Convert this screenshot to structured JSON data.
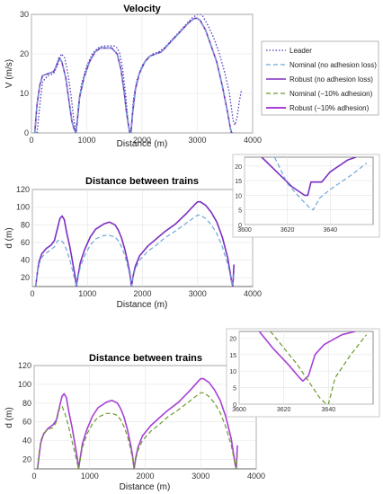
{
  "colors": {
    "leader": "#4b3fb5",
    "nominal": "#6ea6d9",
    "robust": "#7b2fbe",
    "nominal_adhesion": "#6b9a2c",
    "robust_adhesion": "#a83fd6"
  },
  "legend_labels": {
    "leader": "Leader",
    "nominal": "Nominal (no adhesion loss)",
    "robust": "Robust (no adhesion loss)",
    "nominal_adhesion": "Nominal (−10% adhesion)",
    "robust_adhesion": "Robust (−10% adhesion)"
  },
  "chart_data": [
    {
      "id": "velocity",
      "type": "line",
      "title": "Velocity",
      "xlabel": "Distance (m)",
      "ylabel": "V (m/s)",
      "xlim": [
        0,
        4000
      ],
      "ylim": [
        0,
        30
      ],
      "xticks": [
        0,
        1000,
        2000,
        3000,
        4000
      ],
      "yticks": [
        0,
        10,
        20,
        30
      ],
      "legend_position": "right",
      "series": [
        {
          "key": "leader",
          "name": "Leader",
          "style": "dotted",
          "x": [
            100,
            160,
            200,
            300,
            400,
            470,
            540,
            600,
            660,
            720,
            760,
            790,
            810,
            850,
            900,
            1000,
            1100,
            1200,
            1300,
            1400,
            1500,
            1550,
            1600,
            1650,
            1700,
            1740,
            1760,
            1780,
            1800,
            1840,
            1900,
            2000,
            2100,
            2200,
            2300,
            2400,
            2500,
            2600,
            2700,
            2800,
            2900,
            3000,
            3050,
            3100,
            3200,
            3300,
            3400,
            3500,
            3580,
            3620,
            3650,
            3680,
            3720,
            3760,
            3800
          ],
          "y": [
            0,
            8,
            13,
            14.5,
            15,
            17,
            20,
            19,
            15,
            9,
            4,
            1,
            0,
            7,
            12,
            17,
            20,
            21.5,
            22,
            22,
            22,
            21.5,
            20,
            16,
            10,
            4,
            1.5,
            0,
            0,
            8,
            13,
            17,
            19,
            20,
            20.5,
            21.5,
            23,
            24.5,
            26,
            27.5,
            29,
            30,
            30,
            29.5,
            27,
            24,
            20,
            15,
            10,
            6,
            3,
            2,
            4,
            8,
            11
          ]
        },
        {
          "key": "nominal",
          "name": "Nominal (no adhesion loss)",
          "style": "dashed",
          "x": [
            60,
            100,
            150,
            200,
            300,
            400,
            450,
            500,
            550,
            620,
            680,
            730,
            770,
            800,
            830,
            870,
            950,
            1050,
            1150,
            1250,
            1350,
            1450,
            1550,
            1620,
            1680,
            1720,
            1760,
            1780,
            1800,
            1830,
            1880,
            1950,
            2050,
            2150,
            2250,
            2350,
            2450,
            2550,
            2650,
            2750,
            2850,
            2950,
            3000,
            3050,
            3150,
            3250,
            3350,
            3450,
            3550,
            3600,
            3620,
            3640
          ],
          "y": [
            0,
            7,
            12,
            14.5,
            15,
            15.5,
            17,
            19,
            18,
            14,
            8,
            3,
            1,
            0,
            3,
            9,
            14,
            18,
            20.5,
            21.5,
            21.5,
            21.5,
            20,
            16,
            10,
            5,
            1.5,
            0,
            0,
            5,
            11,
            15,
            18,
            19.5,
            20,
            20.5,
            22,
            23.5,
            25,
            26.5,
            28,
            29,
            29,
            28.5,
            26,
            22,
            18,
            12,
            5,
            1,
            0,
            0
          ]
        },
        {
          "key": "robust",
          "name": "Robust (no adhesion loss)",
          "style": "solid",
          "x": [
            60,
            100,
            150,
            200,
            300,
            400,
            450,
            500,
            550,
            620,
            680,
            730,
            770,
            800,
            830,
            870,
            950,
            1050,
            1150,
            1250,
            1350,
            1450,
            1550,
            1620,
            1680,
            1720,
            1760,
            1780,
            1800,
            1830,
            1880,
            1950,
            2050,
            2150,
            2250,
            2350,
            2450,
            2550,
            2650,
            2750,
            2850,
            2950,
            3000,
            3050,
            3150,
            3250,
            3350,
            3450,
            3550,
            3600,
            3620,
            3640
          ],
          "y": [
            0,
            7,
            12,
            14.5,
            15,
            15.5,
            17,
            19,
            18,
            14,
            8,
            3,
            1,
            0,
            3,
            9,
            14,
            18,
            20.5,
            21.5,
            21.5,
            21.5,
            20,
            16,
            10,
            5,
            1.5,
            0,
            0,
            5,
            11,
            15,
            18,
            19.5,
            20,
            20.5,
            22,
            23.5,
            25,
            26.5,
            28,
            29,
            29,
            28.5,
            26,
            22,
            18,
            12,
            5,
            1,
            0,
            0
          ]
        },
        {
          "key": "nominal_adhesion",
          "name": "Nominal (−10% adhesion)",
          "style": "dashed",
          "x": [],
          "y": []
        },
        {
          "key": "robust_adhesion",
          "name": "Robust (−10% adhesion)",
          "style": "solid",
          "x": [],
          "y": []
        }
      ]
    },
    {
      "id": "distance1",
      "type": "line",
      "title": "Distance between trains",
      "xlabel": "Distance (m)",
      "ylabel": "d (m)",
      "xlim": [
        0,
        4000
      ],
      "ylim": [
        10,
        120
      ],
      "xticks": [
        0,
        1000,
        2000,
        3000,
        4000
      ],
      "yticks": [
        20,
        40,
        60,
        80,
        100,
        120
      ],
      "series": [
        {
          "key": "nominal",
          "name": "Nominal (no adhesion loss)",
          "style": "dashed",
          "x": [
            60,
            90,
            120,
            170,
            250,
            340,
            400,
            460,
            500,
            560,
            620,
            680,
            730,
            780,
            800,
            830,
            870,
            950,
            1050,
            1150,
            1300,
            1400,
            1500,
            1560,
            1620,
            1680,
            1730,
            1770,
            1790,
            1800,
            1830,
            1870,
            1950,
            2100,
            2250,
            2400,
            2600,
            2800,
            2950,
            3000,
            3050,
            3150,
            3250,
            3350,
            3450,
            3550,
            3620,
            3640,
            3660
          ],
          "y": [
            10,
            25,
            35,
            43,
            48,
            52,
            55,
            62,
            63,
            60,
            52,
            40,
            28,
            15,
            10,
            20,
            32,
            45,
            57,
            64,
            68,
            68,
            66,
            62,
            55,
            45,
            33,
            22,
            14,
            10,
            20,
            30,
            40,
            50,
            57,
            65,
            73,
            82,
            89,
            91,
            91,
            87,
            80,
            70,
            55,
            35,
            15,
            10,
            25
          ]
        },
        {
          "key": "robust",
          "name": "Robust (no adhesion loss)",
          "style": "solid",
          "x": [
            60,
            90,
            120,
            170,
            250,
            340,
            400,
            460,
            500,
            540,
            580,
            620,
            680,
            730,
            780,
            800,
            830,
            870,
            950,
            1050,
            1150,
            1300,
            1400,
            1500,
            1560,
            1620,
            1680,
            1730,
            1770,
            1790,
            1800,
            1830,
            1870,
            1950,
            2100,
            2250,
            2400,
            2600,
            2800,
            2950,
            3000,
            3050,
            3150,
            3250,
            3350,
            3450,
            3550,
            3620,
            3640,
            3660
          ],
          "y": [
            10,
            25,
            38,
            47,
            53,
            57,
            62,
            77,
            87,
            90,
            86,
            72,
            55,
            38,
            20,
            10,
            22,
            37,
            52,
            66,
            75,
            81,
            83,
            80,
            74,
            65,
            52,
            38,
            25,
            15,
            10,
            22,
            33,
            45,
            56,
            64,
            72,
            81,
            93,
            103,
            106,
            106,
            102,
            94,
            83,
            66,
            42,
            15,
            10,
            35
          ]
        },
        {
          "key": "leader",
          "name": "Leader",
          "style": "dotted",
          "x": [],
          "y": []
        },
        {
          "key": "nominal_adhesion",
          "name": "Nominal (−10% adhesion)",
          "style": "dashed",
          "x": [],
          "y": []
        },
        {
          "key": "robust_adhesion",
          "name": "Robust (−10% adhesion)",
          "style": "solid",
          "x": [],
          "y": []
        }
      ]
    },
    {
      "id": "inset1",
      "type": "line",
      "title": "",
      "xlim": [
        3600,
        3660
      ],
      "ylim": [
        0,
        23
      ],
      "xticks": [
        3600,
        3620,
        3640
      ],
      "yticks": [
        0,
        5,
        10,
        15,
        20
      ],
      "series": [
        {
          "key": "nominal",
          "name": "Nominal (no adhesion loss)",
          "style": "dashed",
          "x": [
            3614,
            3620,
            3626,
            3630,
            3632,
            3635,
            3640,
            3650,
            3657
          ],
          "y": [
            23,
            14,
            9,
            6,
            5,
            9,
            12,
            17,
            21
          ]
        },
        {
          "key": "robust",
          "name": "Robust (no adhesion loss)",
          "style": "solid",
          "x": [
            3608,
            3615,
            3622,
            3628,
            3629.5,
            3631,
            3636,
            3640,
            3648,
            3652
          ],
          "y": [
            23,
            18,
            13,
            10,
            10,
            14.5,
            14.5,
            18,
            22,
            23
          ]
        }
      ]
    },
    {
      "id": "distance2",
      "type": "line",
      "title": "Distance between trains",
      "xlabel": "Distance (m)",
      "ylabel": "d (m)",
      "xlim": [
        0,
        4000
      ],
      "ylim": [
        10,
        120
      ],
      "xticks": [
        0,
        1000,
        2000,
        3000,
        4000
      ],
      "yticks": [
        20,
        40,
        60,
        80,
        100,
        120
      ],
      "series": [
        {
          "key": "nominal_adhesion",
          "name": "Nominal (−10% adhesion)",
          "style": "dashed",
          "x": [
            60,
            90,
            120,
            170,
            250,
            340,
            400,
            460,
            500,
            560,
            620,
            680,
            730,
            780,
            800,
            830,
            870,
            950,
            1050,
            1150,
            1300,
            1400,
            1500,
            1560,
            1620,
            1680,
            1730,
            1770,
            1790,
            1800,
            1830,
            1870,
            1950,
            2100,
            2250,
            2400,
            2600,
            2800,
            2950,
            3000,
            3050,
            3150,
            3250,
            3350,
            3450,
            3550,
            3620,
            3640,
            3660
          ],
          "y": [
            10,
            28,
            40,
            48,
            52,
            54,
            60,
            75,
            77,
            68,
            55,
            40,
            28,
            15,
            10,
            20,
            33,
            47,
            58,
            65,
            69,
            69,
            67,
            62,
            55,
            45,
            33,
            22,
            14,
            10,
            20,
            30,
            40,
            50,
            57,
            65,
            73,
            82,
            89,
            91,
            91,
            87,
            80,
            70,
            55,
            35,
            15,
            10,
            25
          ]
        },
        {
          "key": "robust_adhesion",
          "name": "Robust (−10% adhesion)",
          "style": "solid",
          "x": [
            60,
            90,
            120,
            170,
            250,
            340,
            400,
            460,
            500,
            540,
            580,
            620,
            680,
            730,
            780,
            800,
            830,
            870,
            950,
            1050,
            1150,
            1300,
            1400,
            1500,
            1560,
            1620,
            1680,
            1730,
            1770,
            1790,
            1800,
            1830,
            1870,
            1950,
            2100,
            2250,
            2400,
            2600,
            2800,
            2950,
            3000,
            3050,
            3150,
            3250,
            3350,
            3450,
            3550,
            3620,
            3640,
            3660
          ],
          "y": [
            10,
            25,
            38,
            47,
            53,
            57,
            62,
            77,
            87,
            90,
            86,
            72,
            55,
            38,
            20,
            10,
            22,
            37,
            52,
            66,
            75,
            81,
            83,
            80,
            74,
            65,
            52,
            38,
            25,
            15,
            10,
            22,
            33,
            45,
            56,
            64,
            72,
            81,
            93,
            103,
            106,
            106,
            102,
            94,
            83,
            66,
            42,
            15,
            10,
            35
          ]
        },
        {
          "key": "leader",
          "name": "Leader",
          "style": "dotted",
          "x": [],
          "y": []
        },
        {
          "key": "nominal",
          "name": "Nominal (no adhesion loss)",
          "style": "dashed",
          "x": [],
          "y": []
        },
        {
          "key": "robust",
          "name": "Robust (no adhesion loss)",
          "style": "solid",
          "x": [],
          "y": []
        }
      ]
    },
    {
      "id": "inset2",
      "type": "line",
      "title": "",
      "xlim": [
        3600,
        3660
      ],
      "ylim": [
        0,
        22
      ],
      "xticks": [
        3600,
        3620,
        3640
      ],
      "yticks": [
        0,
        5,
        10,
        15,
        20
      ],
      "series": [
        {
          "key": "nominal_adhesion",
          "name": "Nominal (−10% adhesion)",
          "style": "dashed",
          "x": [
            3614,
            3620,
            3626,
            3632,
            3636,
            3639,
            3640,
            3643,
            3650,
            3657
          ],
          "y": [
            22,
            17,
            12,
            6,
            2,
            0,
            0,
            8,
            15,
            21
          ]
        },
        {
          "key": "robust_adhesion",
          "name": "Robust (−10% adhesion)",
          "style": "solid",
          "x": [
            3609,
            3615,
            3622,
            3627,
            3628.5,
            3631,
            3634,
            3638,
            3646,
            3652
          ],
          "y": [
            22,
            17,
            12,
            8,
            7,
            8.5,
            15,
            18,
            21,
            22
          ]
        }
      ]
    }
  ]
}
